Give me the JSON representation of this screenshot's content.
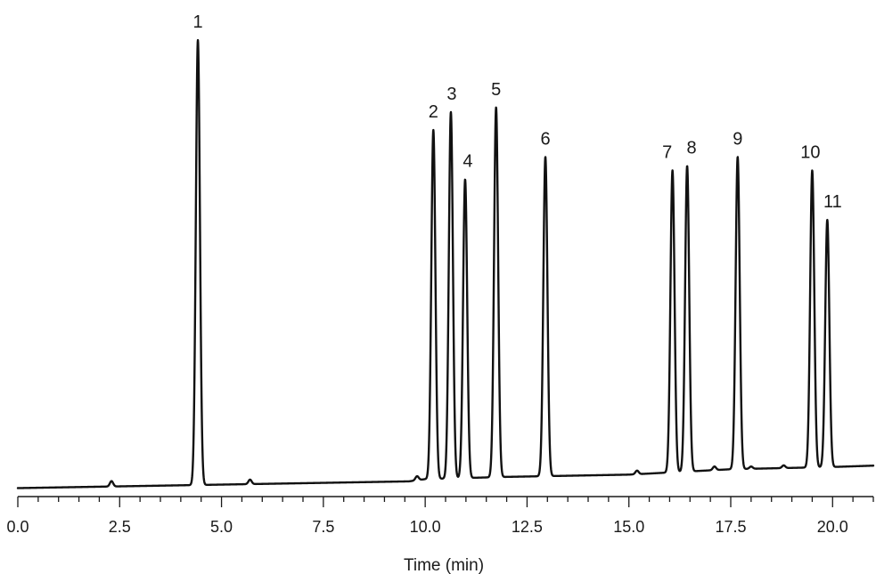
{
  "chart_data": {
    "type": "line",
    "title": "",
    "xlabel": "Time (min)",
    "ylabel": "",
    "xlim": [
      0.0,
      21.0
    ],
    "xticks": [
      "0.0",
      "2.5",
      "5.0",
      "7.5",
      "10.0",
      "12.5",
      "15.0",
      "17.5",
      "20.0"
    ],
    "ylim": [
      0,
      100
    ],
    "grid": false,
    "legend": "none",
    "colors": {
      "trace": "#111111"
    },
    "baseline": [
      [
        0.0,
        0.3
      ],
      [
        9.6,
        1.8
      ],
      [
        10.0,
        2.3
      ],
      [
        12.0,
        2.8
      ],
      [
        15.0,
        3.3
      ],
      [
        17.5,
        4.5
      ],
      [
        20.0,
        5.0
      ],
      [
        21.0,
        5.3
      ]
    ],
    "minor_peaks": [
      {
        "time": 2.3,
        "height": 1.2
      },
      {
        "time": 5.7,
        "height": 1.0
      },
      {
        "time": 9.8,
        "height": 0.9
      },
      {
        "time": 15.2,
        "height": 0.8
      },
      {
        "time": 17.1,
        "height": 0.8
      },
      {
        "time": 18.0,
        "height": 0.5
      },
      {
        "time": 18.8,
        "height": 0.6
      }
    ],
    "peaks": [
      {
        "label": "1",
        "time": 4.42,
        "height": 100
      },
      {
        "label": "2",
        "time": 10.2,
        "height": 80
      },
      {
        "label": "3",
        "time": 10.63,
        "height": 84
      },
      {
        "label": "4",
        "time": 10.98,
        "height": 69
      },
      {
        "label": "5",
        "time": 11.74,
        "height": 85
      },
      {
        "label": "6",
        "time": 12.95,
        "height": 74
      },
      {
        "label": "7",
        "time": 16.07,
        "height": 71
      },
      {
        "label": "8",
        "time": 16.43,
        "height": 72
      },
      {
        "label": "9",
        "time": 17.67,
        "height": 74
      },
      {
        "label": "10",
        "time": 19.5,
        "height": 71
      },
      {
        "label": "11",
        "time": 19.87,
        "height": 60
      }
    ]
  }
}
